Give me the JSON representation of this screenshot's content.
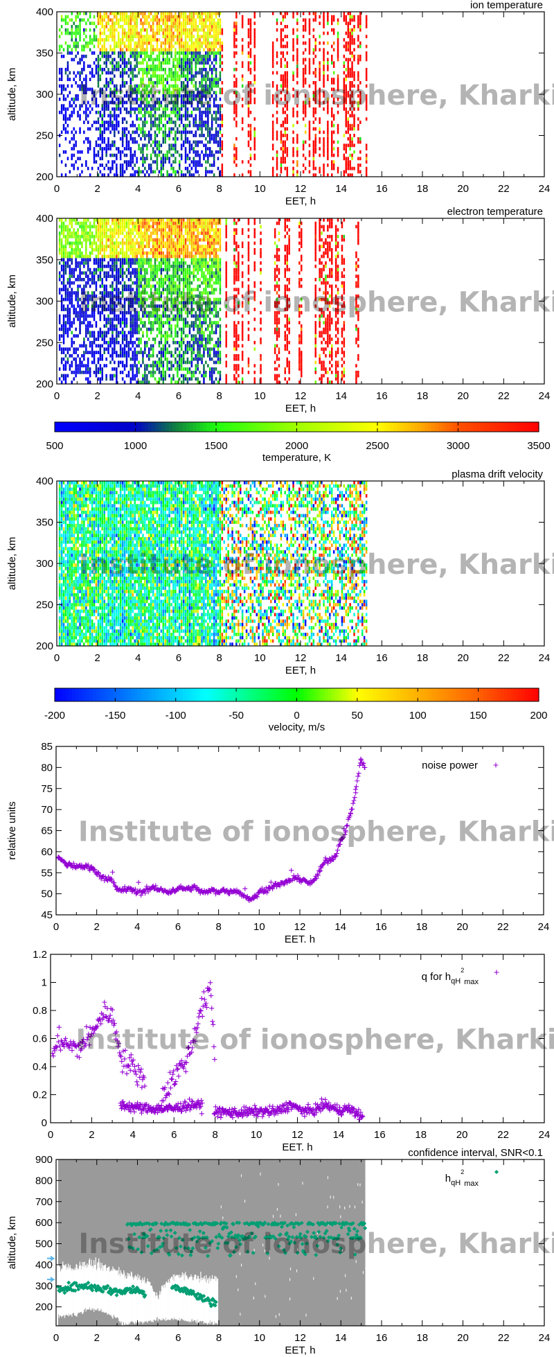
{
  "watermark": "Institute of ionosphere, Kharkiv",
  "chart_data": [
    {
      "type": "heatmap",
      "title": "ion temperature",
      "xlabel": "EET, h",
      "ylabel": "altitude, km",
      "xlim": [
        0,
        24
      ],
      "ylim": [
        200,
        400
      ],
      "xticks": [
        "0",
        "2",
        "4",
        "6",
        "8",
        "10",
        "12",
        "14",
        "16",
        "18",
        "20",
        "22",
        "24"
      ],
      "yticks": [
        "200",
        "250",
        "300",
        "350",
        "400"
      ],
      "time_bins_h": [
        0.1,
        2,
        4,
        6,
        8,
        15.2
      ],
      "altitude_bands_km": [
        200,
        250,
        300,
        350,
        400
      ],
      "values_K": [
        [
          650,
          700,
          800,
          1500
        ],
        [
          800,
          900,
          1100,
          2500
        ],
        [
          1200,
          1300,
          1600,
          2600
        ],
        [
          900,
          1000,
          1300,
          2500
        ],
        [
          3500,
          3500,
          3500,
          3500
        ]
      ],
      "coverage": [
        0.45,
        0.75,
        0.85,
        0.9,
        0.12
      ]
    },
    {
      "type": "heatmap",
      "title": "electron temperature",
      "xlabel": "EET, h",
      "ylabel": "altitude, km",
      "xlim": [
        0,
        24
      ],
      "ylim": [
        200,
        400
      ],
      "xticks": [
        "0",
        "2",
        "4",
        "6",
        "8",
        "10",
        "12",
        "14",
        "16",
        "18",
        "20",
        "22",
        "24"
      ],
      "yticks": [
        "200",
        "250",
        "300",
        "350",
        "400"
      ],
      "time_bins_h": [
        0.1,
        2,
        4,
        6,
        8,
        15.2
      ],
      "altitude_bands_km": [
        200,
        250,
        300,
        350,
        400
      ],
      "values_K": [
        [
          800,
          800,
          900,
          1900
        ],
        [
          800,
          900,
          1000,
          2400
        ],
        [
          1300,
          1400,
          1500,
          2700
        ],
        [
          1200,
          1300,
          1600,
          2700
        ],
        [
          3500,
          3500,
          3500,
          3500
        ]
      ],
      "coverage": [
        0.8,
        0.85,
        0.95,
        0.95,
        0.12
      ],
      "colorbar": {
        "label": "temperature, K",
        "range": [
          500,
          3500
        ],
        "ticks": [
          "500",
          "1000",
          "1500",
          "2000",
          "2500",
          "3000",
          "3500"
        ],
        "stops": [
          [
            500,
            "#0000ff"
          ],
          [
            1000,
            "#0000c8"
          ],
          [
            1250,
            "#108040"
          ],
          [
            1500,
            "#20ff10"
          ],
          [
            2000,
            "#a0ff00"
          ],
          [
            2500,
            "#ffff00"
          ],
          [
            2750,
            "#ffb000"
          ],
          [
            3000,
            "#ff5000"
          ],
          [
            3500,
            "#ff0000"
          ]
        ]
      }
    },
    {
      "type": "heatmap",
      "title": "plasma drift velocity",
      "xlabel": "EET, h",
      "ylabel": "altitude, km",
      "xlim": [
        0,
        24
      ],
      "ylim": [
        200,
        400
      ],
      "xticks": [
        "0",
        "2",
        "4",
        "6",
        "8",
        "10",
        "12",
        "14",
        "16",
        "18",
        "20",
        "22",
        "24"
      ],
      "yticks": [
        "200",
        "250",
        "300",
        "350",
        "400"
      ],
      "time_bins_h": [
        0.1,
        8,
        15.2
      ],
      "mean_velocity_ms": [
        -40,
        0
      ],
      "spread_ms": [
        70,
        160
      ],
      "coverage": [
        0.9,
        0.55
      ],
      "colorbar": {
        "label": "velocity, m/s",
        "range": [
          -200,
          200
        ],
        "ticks": [
          "-200",
          "-150",
          "-100",
          "-50",
          "0",
          "50",
          "100",
          "150",
          "200"
        ],
        "stops": [
          [
            -200,
            "#0000ff"
          ],
          [
            -150,
            "#0066ff"
          ],
          [
            -100,
            "#00ccff"
          ],
          [
            -75,
            "#00ffff"
          ],
          [
            -50,
            "#00ffaa"
          ],
          [
            0,
            "#00ff00"
          ],
          [
            50,
            "#ffff00"
          ],
          [
            100,
            "#ffb000"
          ],
          [
            150,
            "#ff6000"
          ],
          [
            200,
            "#ff0000"
          ]
        ]
      }
    },
    {
      "type": "scatter",
      "legend": "noise power",
      "xlabel": "EET. h",
      "ylabel": "relative units",
      "xlim": [
        0,
        24
      ],
      "ylim": [
        45,
        85
      ],
      "xticks": [
        "0",
        "2",
        "4",
        "6",
        "8",
        "10",
        "12",
        "14",
        "16",
        "18",
        "20",
        "22",
        "24"
      ],
      "yticks": [
        "45",
        "50",
        "55",
        "60",
        "65",
        "70",
        "75",
        "80",
        "85"
      ],
      "color": "#9400d3",
      "points": [
        [
          0.1,
          58.5
        ],
        [
          0.25,
          58
        ],
        [
          0.5,
          57
        ],
        [
          0.75,
          56.8
        ],
        [
          1,
          56.5
        ],
        [
          1.25,
          56.5
        ],
        [
          1.5,
          56.5
        ],
        [
          1.75,
          56.3
        ],
        [
          2,
          55
        ],
        [
          2.25,
          54
        ],
        [
          2.5,
          53.5
        ],
        [
          2.75,
          53
        ],
        [
          3,
          51
        ],
        [
          3.25,
          51
        ],
        [
          3.5,
          51
        ],
        [
          3.75,
          51
        ],
        [
          4,
          50.3
        ],
        [
          4.25,
          50.5
        ],
        [
          4.5,
          51
        ],
        [
          4.75,
          51.5
        ],
        [
          5,
          51
        ],
        [
          5.25,
          50.8
        ],
        [
          5.5,
          50.5
        ],
        [
          5.75,
          50.8
        ],
        [
          6,
          51.2
        ],
        [
          6.25,
          51.3
        ],
        [
          6.5,
          51.2
        ],
        [
          6.75,
          51.5
        ],
        [
          7,
          51
        ],
        [
          7.25,
          50.3
        ],
        [
          7.5,
          50.5
        ],
        [
          7.75,
          50.8
        ],
        [
          8,
          50.5
        ],
        [
          8.25,
          50.8
        ],
        [
          8.5,
          50.5
        ],
        [
          8.75,
          50.8
        ],
        [
          9,
          50.5
        ],
        [
          9.25,
          49.5
        ],
        [
          9.5,
          48.8
        ],
        [
          9.75,
          49
        ],
        [
          10,
          50.3
        ],
        [
          10.25,
          51
        ],
        [
          10.5,
          51.2
        ],
        [
          10.75,
          52
        ],
        [
          11,
          52.2
        ],
        [
          11.25,
          52.5
        ],
        [
          11.5,
          53.2
        ],
        [
          11.75,
          53.7
        ],
        [
          12,
          53.5
        ],
        [
          12.25,
          53.3
        ],
        [
          12.5,
          52.3
        ],
        [
          12.75,
          53.5
        ],
        [
          13,
          55.5
        ],
        [
          13.25,
          58
        ],
        [
          13.5,
          58
        ],
        [
          13.75,
          59
        ],
        [
          14,
          62.5
        ],
        [
          14.25,
          65
        ],
        [
          14.5,
          69
        ],
        [
          14.75,
          74
        ],
        [
          15,
          82
        ],
        [
          15.2,
          80
        ]
      ]
    },
    {
      "type": "scatter",
      "legend": {
        "main": "q for h",
        "sub1": "qH",
        "sup": "2",
        "sub2": "max"
      },
      "xlabel": "EET. h",
      "ylabel": "",
      "xlim": [
        0,
        24
      ],
      "ylim": [
        0,
        1.2
      ],
      "xticks": [
        "0",
        "2",
        "4",
        "6",
        "8",
        "10",
        "12",
        "14",
        "16",
        "18",
        "20",
        "22",
        "24"
      ],
      "yticks": [
        "0",
        "0.2",
        "0.4",
        "0.6",
        "0.8",
        "1",
        "1.2"
      ],
      "color": "#9400d3",
      "upper_branch": [
        [
          0.1,
          0.45
        ],
        [
          0.25,
          0.55
        ],
        [
          0.5,
          0.6
        ],
        [
          0.75,
          0.55
        ],
        [
          1,
          0.55
        ],
        [
          1.25,
          0.52
        ],
        [
          1.5,
          0.55
        ],
        [
          1.75,
          0.6
        ],
        [
          2,
          0.62
        ],
        [
          2.25,
          0.72
        ],
        [
          2.5,
          0.75
        ],
        [
          2.75,
          0.8
        ],
        [
          3,
          0.75
        ],
        [
          3.25,
          0.6
        ],
        [
          3.5,
          0.45
        ],
        [
          3.75,
          0.42
        ],
        [
          4,
          0.4
        ],
        [
          4.25,
          0.35
        ],
        [
          4.5,
          0.32
        ],
        [
          5.5,
          0.2
        ],
        [
          5.75,
          0.27
        ],
        [
          6,
          0.33
        ],
        [
          6.25,
          0.38
        ],
        [
          6.5,
          0.42
        ],
        [
          6.75,
          0.5
        ],
        [
          7,
          0.62
        ],
        [
          7.25,
          0.8
        ],
        [
          7.5,
          0.85
        ],
        [
          7.75,
          0.95
        ],
        [
          7.9,
          0.7
        ],
        [
          8,
          0.35
        ]
      ],
      "lower_branch": [
        [
          3.4,
          0.13
        ],
        [
          4,
          0.11
        ],
        [
          5,
          0.1
        ],
        [
          6,
          0.1
        ],
        [
          6.5,
          0.12
        ],
        [
          7,
          0.13
        ],
        [
          7.3,
          0.12
        ],
        [
          8,
          0.08
        ],
        [
          9,
          0.07
        ],
        [
          10,
          0.08
        ],
        [
          11,
          0.08
        ],
        [
          11.7,
          0.13
        ],
        [
          12,
          0.1
        ],
        [
          12.5,
          0.08
        ],
        [
          13,
          0.1
        ],
        [
          13.3,
          0.13
        ],
        [
          14,
          0.09
        ],
        [
          14.5,
          0.1
        ],
        [
          15.2,
          0.04
        ]
      ]
    },
    {
      "type": "scatter",
      "title": "confidence interval, SNR<0.1",
      "legend": {
        "main": "h",
        "sub1": "qH",
        "sup": "2",
        "sub2": "max"
      },
      "xlabel": "EET, h",
      "ylabel": "altitude, km",
      "xlim": [
        0,
        24
      ],
      "ylim": [
        110,
        900
      ],
      "xticks": [
        "0",
        "2",
        "4",
        "6",
        "8",
        "10",
        "12",
        "14",
        "16",
        "18",
        "20",
        "22",
        "24"
      ],
      "yticks": [
        "200",
        "300",
        "400",
        "500",
        "600",
        "700",
        "800",
        "900"
      ],
      "color": "#009e73",
      "confidence_fill": "#9a9a9a",
      "confidence_x_range_h": [
        0.1,
        15.2
      ],
      "confidence_gap_upper": [
        [
          0.1,
          390
        ],
        [
          1,
          385
        ],
        [
          1.5,
          410
        ],
        [
          2,
          400
        ],
        [
          3,
          370
        ],
        [
          4,
          340
        ],
        [
          4.5,
          320
        ],
        [
          5,
          250
        ],
        [
          5.5,
          330
        ],
        [
          6,
          350
        ],
        [
          7,
          340
        ],
        [
          7.9,
          330
        ]
      ],
      "confidence_gap_lower": [
        [
          0.1,
          155
        ],
        [
          1,
          165
        ],
        [
          1.5,
          190
        ],
        [
          2,
          185
        ],
        [
          3,
          150
        ],
        [
          3.2,
          120
        ],
        [
          4,
          125
        ],
        [
          5,
          140
        ],
        [
          6,
          140
        ],
        [
          7,
          130
        ],
        [
          7.9,
          120
        ]
      ],
      "lower_band": [
        [
          0.1,
          290
        ],
        [
          1,
          295
        ],
        [
          1.5,
          300
        ],
        [
          2,
          290
        ],
        [
          2.5,
          285
        ],
        [
          3,
          270
        ],
        [
          3.5,
          280
        ],
        [
          4,
          280
        ],
        [
          4.3,
          265
        ],
        [
          5.8,
          300
        ],
        [
          6.3,
          280
        ],
        [
          6.8,
          260
        ],
        [
          7.2,
          240
        ],
        [
          7.6,
          225
        ],
        [
          7.9,
          220
        ]
      ],
      "upper_band": {
        "x_range_h": [
          3.5,
          15.2
        ],
        "levels_km": [
          600,
          530
        ],
        "min_km": 440
      },
      "markers_km": [
        430,
        330
      ],
      "marker_color": "#56b4e9"
    }
  ]
}
